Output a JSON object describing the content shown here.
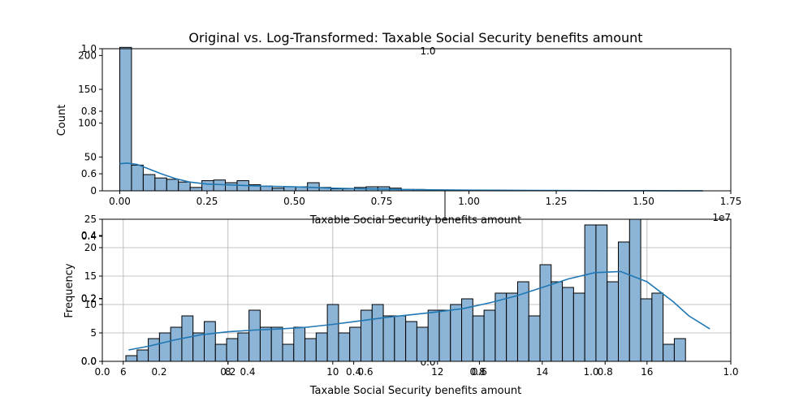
{
  "figure": {
    "title": "Original vs. Log-Transformed: Taxable Social Security benefits amount"
  },
  "colors": {
    "bar_fill": "#8bb4d6",
    "kde_line": "#1f77b4",
    "edge": "#000000",
    "grid": "#b0b0b0"
  },
  "chart_data": [
    {
      "type": "bar",
      "title": "",
      "xlabel": "Taxable Social Security benefits amount",
      "ylabel": "Count",
      "x_offset_label": "1e7",
      "xlim": [
        -0.05,
        1.75
      ],
      "ylim": [
        0,
        210
      ],
      "grid": false,
      "bin_start": 0.0,
      "bin_width": 0.0336,
      "counts": [
        212,
        38,
        24,
        19,
        17,
        13,
        5,
        15,
        16,
        12,
        15,
        9,
        7,
        4,
        6,
        6,
        12,
        5,
        3,
        3,
        5,
        6,
        6,
        4,
        2,
        2,
        1,
        1,
        1,
        1,
        0,
        0,
        0,
        0,
        0,
        0,
        0,
        0,
        0,
        0,
        0,
        0,
        0,
        0,
        0,
        0,
        0,
        0,
        0,
        0
      ],
      "kde": {
        "x": [
          0.0,
          0.02,
          0.05,
          0.08,
          0.12,
          0.16,
          0.2,
          0.25,
          0.3,
          0.35,
          0.4,
          0.5,
          0.6,
          0.7,
          0.8,
          0.9,
          1.0,
          1.1,
          1.2,
          1.3,
          1.4,
          1.5,
          1.6,
          1.67
        ],
        "y": [
          40,
          41,
          39,
          33,
          25,
          18,
          13,
          10,
          9,
          8,
          7,
          6,
          4,
          3,
          2,
          1.5,
          1,
          0.8,
          0.6,
          0.4,
          0.3,
          0.2,
          0.1,
          0.1
        ]
      },
      "x_ticks": [
        0.0,
        0.25,
        0.5,
        0.75,
        1.0,
        1.25,
        1.5,
        1.75
      ],
      "x_tick_labels": [
        "0.00",
        "0.25",
        "0.50",
        "0.75",
        "1.00",
        "1.25",
        "1.50",
        "1.75"
      ],
      "y_ticks": [
        0,
        50,
        100,
        150,
        200
      ],
      "y_tick_labels": [
        "0",
        "50",
        "100",
        "150",
        "200"
      ]
    },
    {
      "type": "bar",
      "title": "",
      "xlabel": "Taxable Social Security benefits amount",
      "ylabel": "Frequency",
      "xlim": [
        5.6,
        17.6
      ],
      "ylim": [
        0,
        25
      ],
      "grid": true,
      "bin_start": 6.05,
      "bin_width": 0.2137,
      "counts": [
        1,
        2,
        4,
        5,
        6,
        8,
        5,
        7,
        3,
        4,
        5,
        9,
        6,
        6,
        3,
        6,
        4,
        5,
        10,
        5,
        6,
        9,
        10,
        8,
        8,
        7,
        6,
        9,
        9,
        10,
        11,
        8,
        9,
        12,
        12,
        14,
        8,
        17,
        14,
        13,
        12,
        24,
        24,
        14,
        21,
        25,
        11,
        12,
        3,
        4
      ],
      "kde": {
        "x": [
          6.1,
          6.5,
          7.0,
          7.5,
          8.0,
          8.5,
          9.0,
          9.5,
          10.0,
          10.5,
          11.0,
          11.5,
          12.0,
          12.5,
          13.0,
          13.5,
          14.0,
          14.5,
          15.0,
          15.5,
          16.0,
          16.5,
          16.8,
          17.2
        ],
        "y": [
          2,
          2.7,
          3.8,
          4.7,
          5.2,
          5.5,
          5.7,
          6,
          6.5,
          7.1,
          7.7,
          8.2,
          8.7,
          9.3,
          10.3,
          11.5,
          13,
          14.5,
          15.6,
          15.8,
          14,
          10.5,
          8,
          5.7
        ]
      },
      "x_ticks": [
        6,
        8,
        10,
        12,
        14,
        16
      ],
      "x_tick_labels": [
        "6",
        "8",
        "10",
        "12",
        "14",
        "16"
      ],
      "y_ticks": [
        0,
        5,
        10,
        15,
        20,
        25
      ],
      "y_tick_labels": [
        "0",
        "5",
        "10",
        "15",
        "20",
        "25"
      ]
    }
  ],
  "ghost_axes": {
    "left_ticks": [
      "0.0",
      "0.2",
      "0.4",
      "0.6",
      "0.8",
      "1.0"
    ],
    "bottom_ticks": [
      "0.0",
      "0.2",
      "0.4",
      "0.6",
      "0.8",
      "1.0"
    ],
    "top_label": "1.0",
    "bottom_center_label": "0.0",
    "inner_left_ticks": [
      "0.0",
      "0.2",
      "0.4"
    ],
    "inner_bottom_ticks": [
      "0.0",
      "0.2",
      "0.4",
      "0.6",
      "0.8",
      "1.0"
    ]
  }
}
